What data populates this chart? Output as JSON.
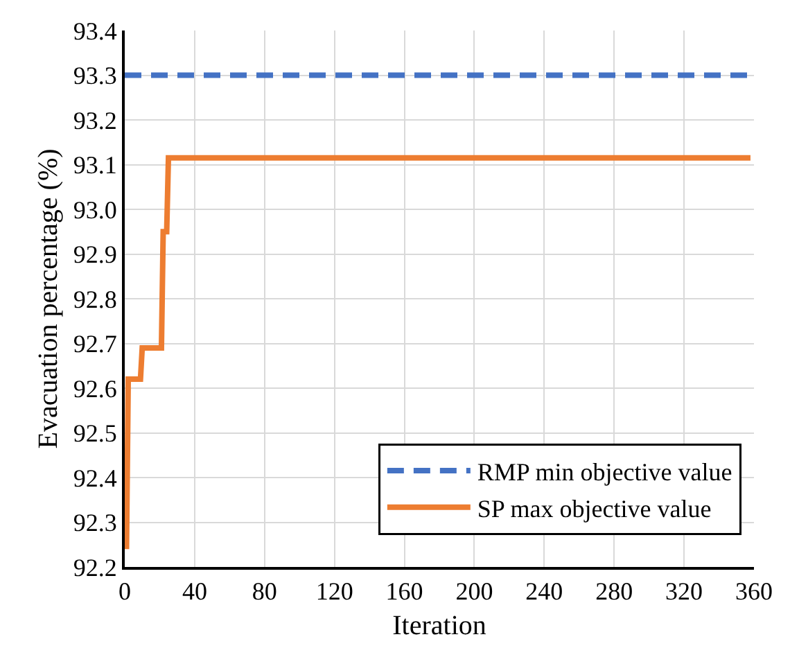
{
  "chart_data": {
    "type": "line",
    "xlabel": "Iteration",
    "ylabel": "Evacuation percentage (%)",
    "xlim": [
      0,
      360
    ],
    "xticks": [
      0,
      40,
      80,
      120,
      160,
      200,
      240,
      280,
      320,
      360
    ],
    "ylim": [
      92.2,
      93.4
    ],
    "yticks": [
      {
        "value": 92.2,
        "label": "92.2"
      },
      {
        "value": 92.3,
        "label": "92.3"
      },
      {
        "value": 92.4,
        "label": "92.4"
      },
      {
        "value": 92.5,
        "label": "92.5"
      },
      {
        "value": 92.6,
        "label": "92.6"
      },
      {
        "value": 92.7,
        "label": "92.7"
      },
      {
        "value": 92.8,
        "label": "92.8"
      },
      {
        "value": 92.9,
        "label": "92.9"
      },
      {
        "value": 93.0,
        "label": "93.0"
      },
      {
        "value": 93.1,
        "label": "93.1"
      },
      {
        "value": 93.2,
        "label": "93.2"
      },
      {
        "value": 93.3,
        "label": "93.3"
      },
      {
        "value": 93.4,
        "label": "93.4"
      }
    ],
    "grid": true,
    "legend": "bottom right",
    "marker": "none",
    "series": [
      {
        "name": "RMP min objective value",
        "color": "#4472c4",
        "line_style": "dashed",
        "x": [
          0,
          357
        ],
        "values": [
          93.3,
          93.3
        ]
      },
      {
        "name": "SP max objective value",
        "color": "#ed7d31",
        "line_style": "solid",
        "x": [
          1,
          2,
          9,
          10,
          21,
          22,
          24,
          25,
          358
        ],
        "values": [
          92.24,
          92.62,
          92.62,
          92.69,
          92.69,
          92.95,
          92.95,
          93.115,
          93.115
        ]
      }
    ]
  }
}
